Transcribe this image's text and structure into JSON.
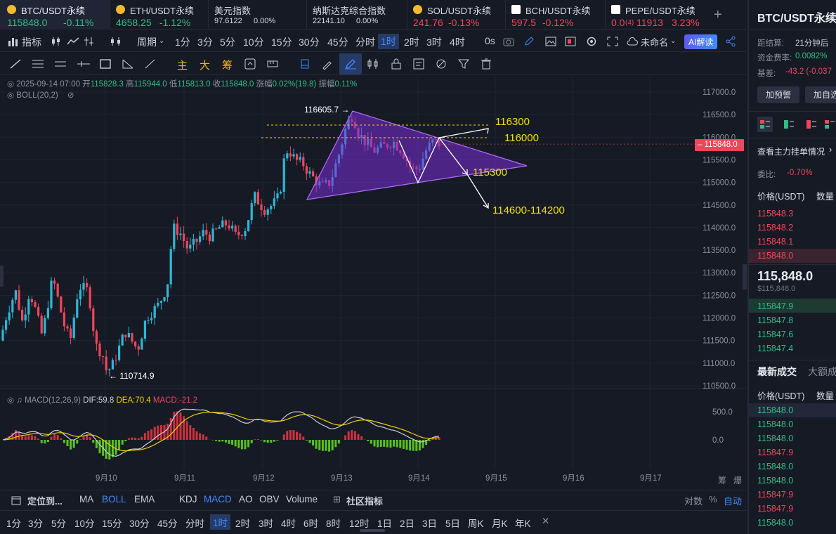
{
  "tickers": [
    {
      "name": "BTC/USDT永续",
      "price": "115848.0",
      "change": "-0.11%",
      "trend": "dn",
      "active": true
    },
    {
      "name": "ETH/USDT永续",
      "price": "4658.25",
      "change": "-1.12%",
      "trend": "dn"
    },
    {
      "name": "美元指数",
      "price": "97.6122",
      "change": "0.00%",
      "trend": "flat"
    },
    {
      "name": "纳斯达克综合指数",
      "price": "22141.10",
      "change": "0.00%",
      "trend": "flat"
    },
    {
      "name": "SOL/USDT永续",
      "price": "241.76",
      "change": "-0.13%",
      "trend": "dn"
    },
    {
      "name": "BCH/USDT永续",
      "price": "597.5",
      "change": "-0.12%",
      "trend": "dn"
    },
    {
      "name": "PEPE/USDT永续",
      "price": "0.0",
      "price_sub": "(4)",
      "price_tail": "11913",
      "change": "3.23%",
      "trend": "up"
    }
  ],
  "toolbar": {
    "indicator": "指标",
    "period": "周期",
    "intervals": [
      "1分",
      "3分",
      "5分",
      "10分",
      "15分",
      "30分",
      "45分",
      "分时",
      "1时",
      "2时",
      "3时",
      "4时"
    ],
    "selected_interval": "1时",
    "second": "0s",
    "layout_name": "未命名",
    "ai": "AI解读"
  },
  "drawtools": {
    "main": "主",
    "big": "大",
    "chip": "筹"
  },
  "ohlc": {
    "date": "2025-09-14 07:00",
    "open_l": "开",
    "open": "115828.3",
    "high_l": "高",
    "high": "115944.0",
    "low_l": "低",
    "low": "115813.0",
    "close_l": "收",
    "close": "115848.0",
    "chg_l": "涨幅",
    "chg": "0.02%(19.8)",
    "amp_l": "振幅",
    "amp": "0.11%"
  },
  "boll": "BOLL(20,2)",
  "macd": {
    "label": "MACD(12,26,9)",
    "dif": "DIF:59.8",
    "dea": "DEA:70.4",
    "macd": "MACD:-21.2"
  },
  "chart_data": {
    "type": "candlestick",
    "price_axis": [
      "117000.0",
      "116500.0",
      "116000.0",
      "115500.0",
      "115000.0",
      "114500.0",
      "114000.0",
      "113500.0",
      "113000.0",
      "112500.0",
      "112000.0",
      "111500.0",
      "111000.0",
      "110500.0"
    ],
    "macd_axis": [
      "500.0",
      "0.0"
    ],
    "date_axis": [
      "9月10",
      "9月11",
      "9月12",
      "9月13",
      "9月14",
      "9月15",
      "9月16",
      "9月17"
    ],
    "last_price": "115848.0",
    "high_mark": "116605.7",
    "low_mark": "110714.9",
    "annotations": [
      "116300",
      "116000",
      "115300",
      "114600-114200"
    ],
    "ylim": [
      110300,
      117200
    ]
  },
  "bottom": {
    "locate": "定位到...",
    "ma": "MA",
    "boll": "BOLL",
    "ema": "EMA",
    "kdj": "KDJ",
    "macd": "MACD",
    "ao": "AO",
    "obv": "OBV",
    "volume": "Volume",
    "community": "社区指标",
    "log": "对数",
    "pct": "%",
    "auto": "自动",
    "periods": [
      "1分",
      "3分",
      "5分",
      "10分",
      "15分",
      "30分",
      "45分",
      "分时",
      "1时",
      "2时",
      "3时",
      "4时",
      "6时",
      "8时",
      "12时",
      "1日",
      "2日",
      "3日",
      "5日",
      "周K",
      "月K",
      "年K"
    ],
    "selected": "1时",
    "close": "✕",
    "corner_a": "筹",
    "corner_b": "爆"
  },
  "right": {
    "title": "BTC/USDT永续",
    "settle_l": "距结算:",
    "settle": "21分钟后",
    "fund_l": "资金费率:",
    "fund": "0.0082%",
    "basis_l": "基差:",
    "basis": "-43.2 (-0.037",
    "alert": "加预警",
    "fav": "加自选",
    "depth_link": "查看主力挂单情况",
    "ratio_l": "委比:",
    "ratio": "-0.70%",
    "col_price": "价格(USDT)",
    "col_qty": "数量",
    "asks": [
      "115848.3",
      "115848.2",
      "115848.1",
      "115848.0"
    ],
    "mid": "115,848.0",
    "mid_usd": "$115,848.0",
    "bids": [
      "115847.9",
      "115847.8",
      "115847.6",
      "115847.4"
    ],
    "trades_tab": "最新成交",
    "big_tab": "大额成",
    "trade_col_price": "价格(USDT)",
    "trade_col_qty": "数量",
    "trades": [
      {
        "p": "115848.0",
        "t": "up"
      },
      {
        "p": "115848.0",
        "t": "up"
      },
      {
        "p": "115848.0",
        "t": "up"
      },
      {
        "p": "115847.9",
        "t": "dn"
      },
      {
        "p": "115848.0",
        "t": "up"
      },
      {
        "p": "115848.0",
        "t": "up"
      },
      {
        "p": "115847.9",
        "t": "dn"
      },
      {
        "p": "115847.9",
        "t": "dn"
      },
      {
        "p": "115848.0",
        "t": "up"
      }
    ]
  }
}
